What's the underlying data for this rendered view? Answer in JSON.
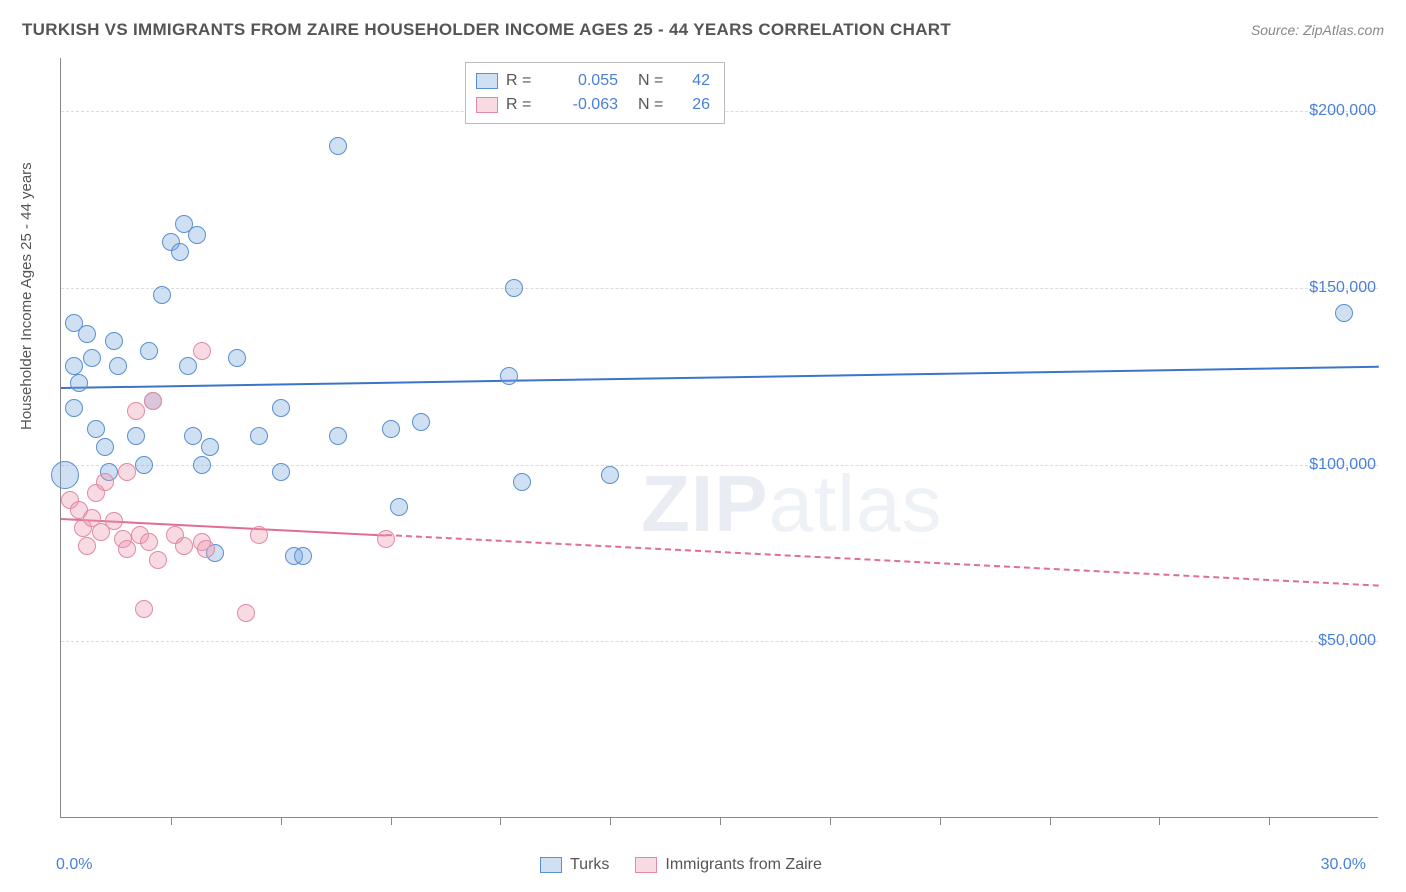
{
  "title": "TURKISH VS IMMIGRANTS FROM ZAIRE HOUSEHOLDER INCOME AGES 25 - 44 YEARS CORRELATION CHART",
  "source": "Source: ZipAtlas.com",
  "ylabel": "Householder Income Ages 25 - 44 years",
  "watermark_a": "ZIP",
  "watermark_b": "atlas",
  "chart": {
    "type": "scatter",
    "xlim": [
      0,
      30
    ],
    "ylim": [
      0,
      215000
    ],
    "x_axis_ticks": [
      2.5,
      5.0,
      7.5,
      10.0,
      12.5,
      15.0,
      17.5,
      20.0,
      22.5,
      25.0,
      27.5
    ],
    "x_labels": [
      {
        "v": 0.0,
        "t": "0.0%"
      },
      {
        "v": 30.0,
        "t": "30.0%"
      }
    ],
    "y_grid": [
      50000,
      100000,
      150000,
      200000
    ],
    "y_labels": [
      {
        "v": 50000,
        "t": "$50,000"
      },
      {
        "v": 100000,
        "t": "$100,000"
      },
      {
        "v": 150000,
        "t": "$150,000"
      },
      {
        "v": 200000,
        "t": "$200,000"
      }
    ],
    "series": [
      {
        "key": "turks",
        "label": "Turks",
        "fill": "rgba(120,165,220,0.35)",
        "stroke": "#5a8fd0",
        "line_color": "#3d74c8",
        "r": 0.055,
        "n": 42,
        "trend": {
          "x1": 0,
          "y1": 122000,
          "x2": 30,
          "y2": 128000,
          "dash": false
        },
        "points": [
          [
            0.1,
            97000,
            "big"
          ],
          [
            0.3,
            128000
          ],
          [
            0.3,
            140000
          ],
          [
            0.3,
            116000
          ],
          [
            0.6,
            137000
          ],
          [
            0.7,
            130000
          ],
          [
            0.8,
            110000
          ],
          [
            0.4,
            123000
          ],
          [
            1.2,
            135000
          ],
          [
            1.3,
            128000
          ],
          [
            1.0,
            105000
          ],
          [
            1.1,
            98000
          ],
          [
            1.7,
            108000
          ],
          [
            2.0,
            132000
          ],
          [
            2.1,
            118000
          ],
          [
            1.9,
            100000
          ],
          [
            2.5,
            163000
          ],
          [
            2.7,
            160000
          ],
          [
            2.3,
            148000
          ],
          [
            2.8,
            168000
          ],
          [
            3.1,
            165000
          ],
          [
            2.9,
            128000
          ],
          [
            3.0,
            108000
          ],
          [
            3.4,
            105000
          ],
          [
            3.5,
            75000
          ],
          [
            3.2,
            100000
          ],
          [
            4.0,
            130000
          ],
          [
            4.5,
            108000
          ],
          [
            5.0,
            98000
          ],
          [
            5.0,
            116000
          ],
          [
            5.3,
            74000
          ],
          [
            5.5,
            74000
          ],
          [
            6.3,
            190000
          ],
          [
            6.3,
            108000
          ],
          [
            7.5,
            110000
          ],
          [
            7.7,
            88000
          ],
          [
            8.2,
            112000
          ],
          [
            10.2,
            125000
          ],
          [
            10.3,
            150000
          ],
          [
            10.5,
            95000
          ],
          [
            12.5,
            97000
          ],
          [
            29.2,
            143000
          ]
        ]
      },
      {
        "key": "zaire",
        "label": "Immigrants from Zaire",
        "fill": "rgba(235,150,175,0.35)",
        "stroke": "#e28aa5",
        "line_color": "#e06e93",
        "r": -0.063,
        "n": 26,
        "trend": {
          "x1": 0,
          "y1": 85000,
          "x2": 30,
          "y2": 66000,
          "dash": true,
          "solid_until": 7.4
        },
        "points": [
          [
            0.2,
            90000
          ],
          [
            0.4,
            87000
          ],
          [
            0.5,
            82000
          ],
          [
            0.7,
            85000
          ],
          [
            0.8,
            92000
          ],
          [
            0.9,
            81000
          ],
          [
            0.6,
            77000
          ],
          [
            1.0,
            95000
          ],
          [
            1.2,
            84000
          ],
          [
            1.4,
            79000
          ],
          [
            1.5,
            76000
          ],
          [
            1.5,
            98000
          ],
          [
            1.7,
            115000
          ],
          [
            1.8,
            80000
          ],
          [
            2.0,
            78000
          ],
          [
            2.2,
            73000
          ],
          [
            1.9,
            59000
          ],
          [
            2.1,
            118000
          ],
          [
            2.6,
            80000
          ],
          [
            2.8,
            77000
          ],
          [
            3.2,
            78000
          ],
          [
            3.3,
            76000
          ],
          [
            3.2,
            132000
          ],
          [
            4.2,
            58000
          ],
          [
            4.5,
            80000
          ],
          [
            7.4,
            79000
          ]
        ]
      }
    ],
    "background_color": "#ffffff",
    "grid_color": "#dcdcdc",
    "axis_color": "#888888",
    "text_color": "#555555",
    "value_color": "#4a7fd8",
    "title_fontsize": 17,
    "label_fontsize": 15,
    "tick_fontsize": 16,
    "marker_size": 18,
    "line_width": 2.5
  }
}
